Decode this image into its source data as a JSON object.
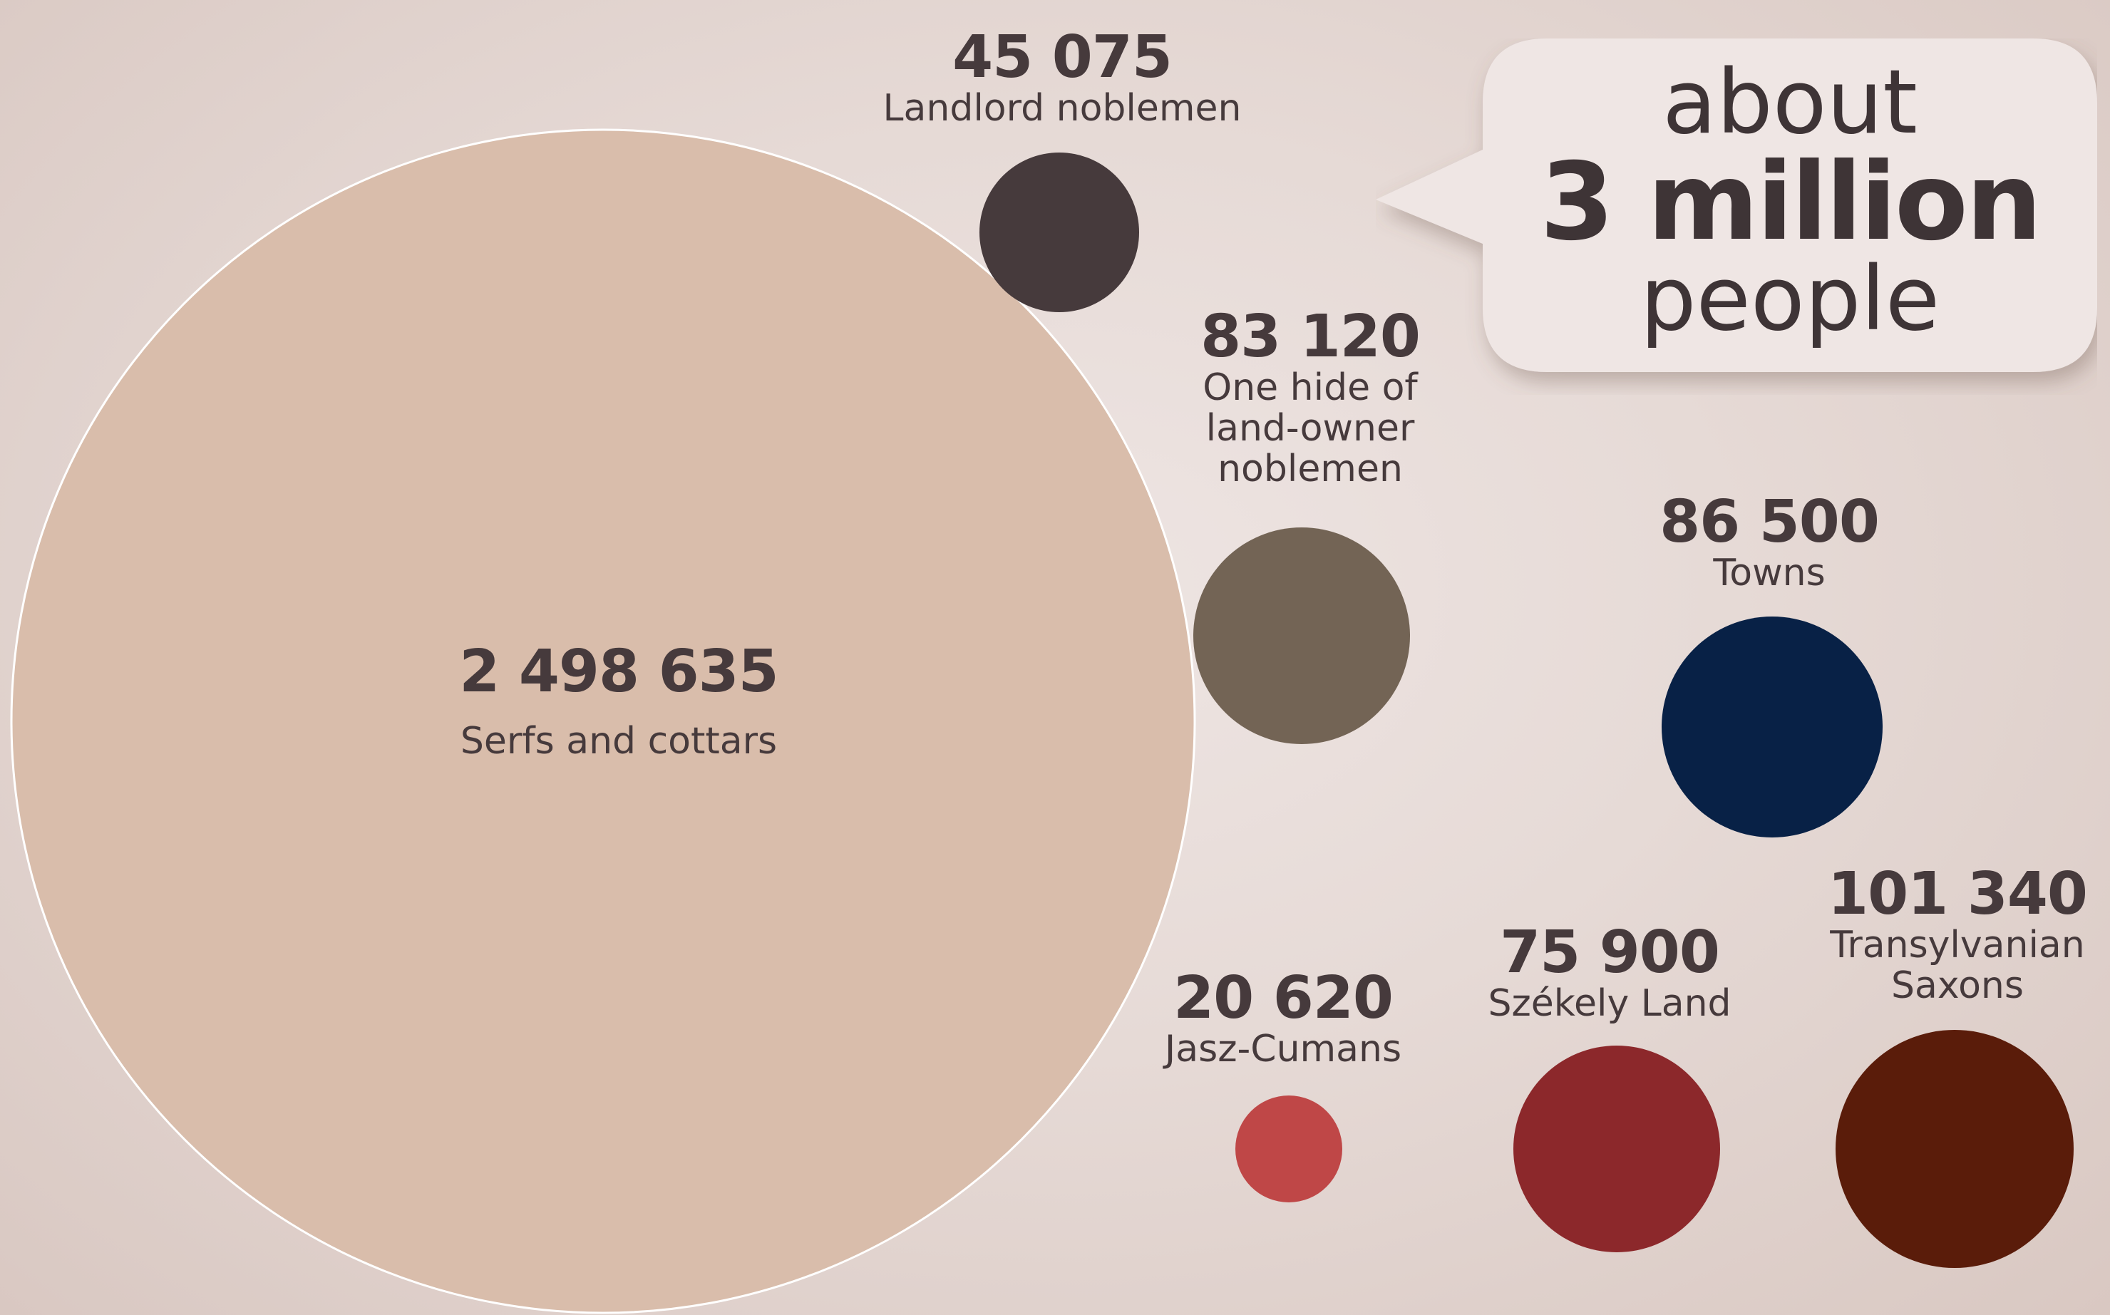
{
  "chart_data": {
    "type": "bubble",
    "title_callout": {
      "line1": "about",
      "line2": "3 million",
      "line3": "people"
    },
    "items": [
      {
        "id": "serfs",
        "value": 2498635,
        "value_label": "2 498 635",
        "label": "Serfs and cottars",
        "color": "#d9bdab"
      },
      {
        "id": "landlord",
        "value": 45075,
        "value_label": "45 075",
        "label": "Landlord noblemen",
        "color": "#463a3c"
      },
      {
        "id": "onehide",
        "value": 83120,
        "value_label": "83 120",
        "label": "One hide of\nland-owner\nnoblemen",
        "color": "#736455"
      },
      {
        "id": "towns",
        "value": 86500,
        "value_label": "86 500",
        "label": "Towns",
        "color": "#082146"
      },
      {
        "id": "jasz",
        "value": 20620,
        "value_label": "20 620",
        "label": "Jasz-Cumans",
        "color": "#bf4747"
      },
      {
        "id": "szekely",
        "value": 75900,
        "value_label": "75 900",
        "label": "Székely Land",
        "color": "#8c282b"
      },
      {
        "id": "saxons",
        "value": 101340,
        "value_label": "101 340",
        "label": "Transylvanian\nSaxons",
        "color": "#5a1c0a"
      }
    ]
  }
}
